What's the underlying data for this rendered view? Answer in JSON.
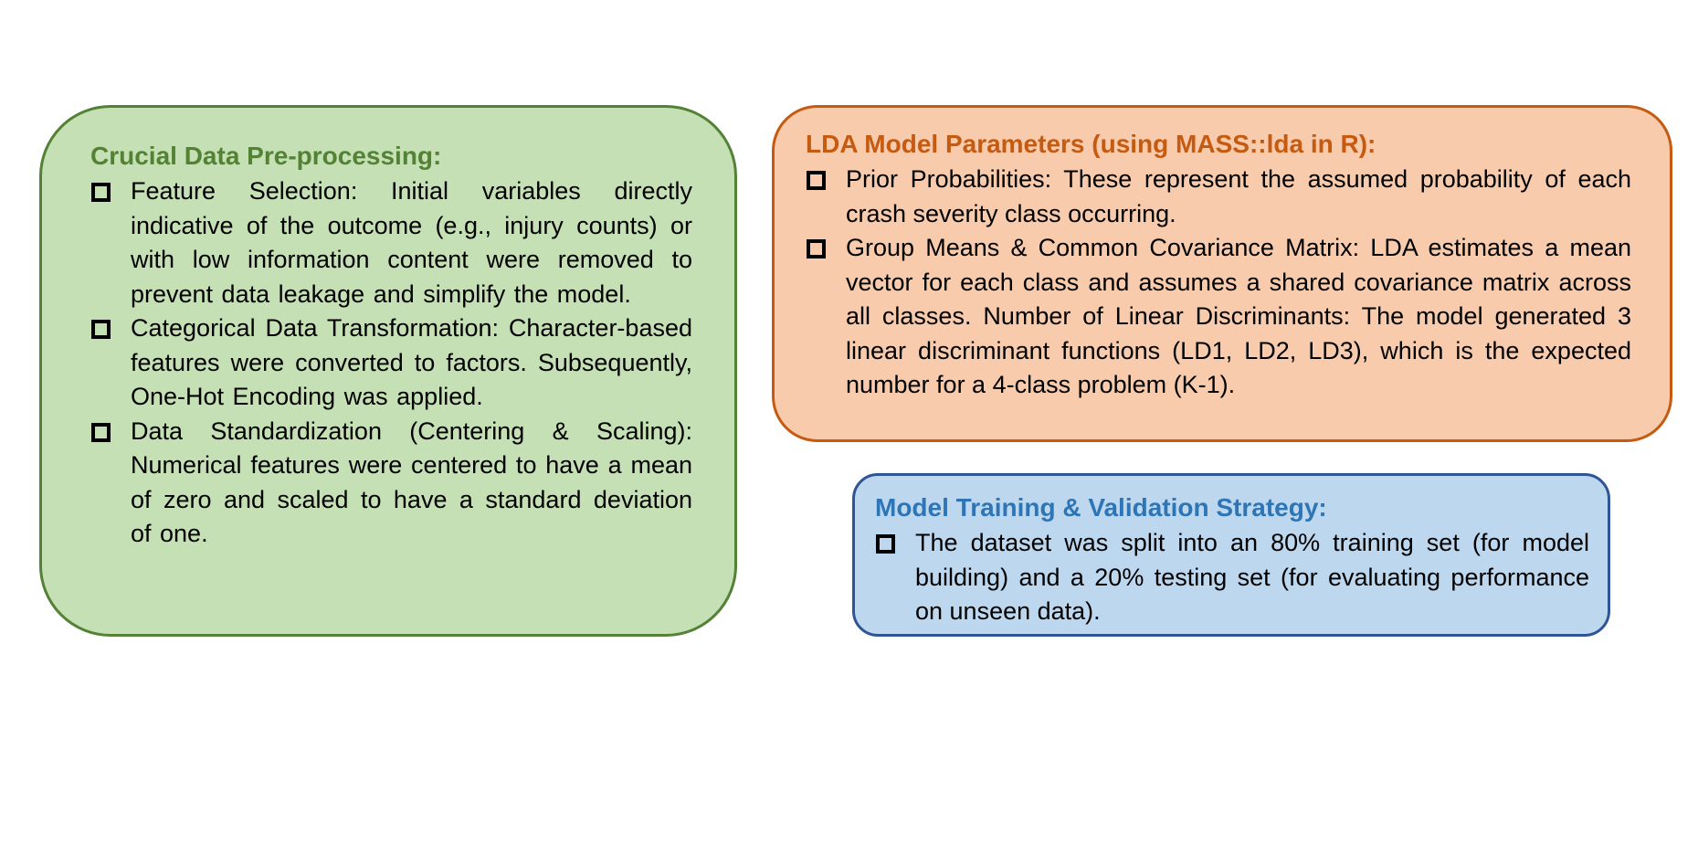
{
  "colors": {
    "preprocessing_fill": "#c5e0b4",
    "preprocessing_border": "#538135",
    "preprocessing_title": "#548235",
    "lda_fill": "#f8cbad",
    "lda_border": "#c55a11",
    "lda_title": "#c55a11",
    "training_fill": "#bdd7ee",
    "training_border": "#2f5597",
    "training_title": "#2e75b6"
  },
  "bullet_icon": "hollow-square-icon",
  "preprocessing": {
    "title": "Crucial Data Pre-processing:",
    "items": [
      "Feature Selection: Initial variables directly indicative of the outcome (e.g., injury counts) or with low information content were removed to prevent data leakage and simplify the model.",
      "Categorical Data Transformation: Character-based features were converted to factors. Subsequently, One-Hot Encoding was applied.",
      "Data Standardization (Centering & Scaling): Numerical features were centered to have a mean of zero and scaled to have a standard deviation of one."
    ]
  },
  "lda": {
    "title": "LDA Model Parameters (using MASS::lda in R):",
    "items": [
      "Prior Probabilities: These represent the assumed probability of each crash severity class occurring.",
      "Group Means & Common Covariance Matrix: LDA estimates a mean vector for each class and assumes a shared covariance matrix across all classes. Number of Linear Discriminants: The model generated 3 linear discriminant functions (LD1, LD2, LD3), which is the expected number for a 4-class problem (K-1)."
    ]
  },
  "training": {
    "title": "Model Training & Validation Strategy:",
    "items": [
      "The dataset was split into an 80% training set (for model building) and a 20% testing set (for evaluating performance on unseen data)."
    ]
  }
}
